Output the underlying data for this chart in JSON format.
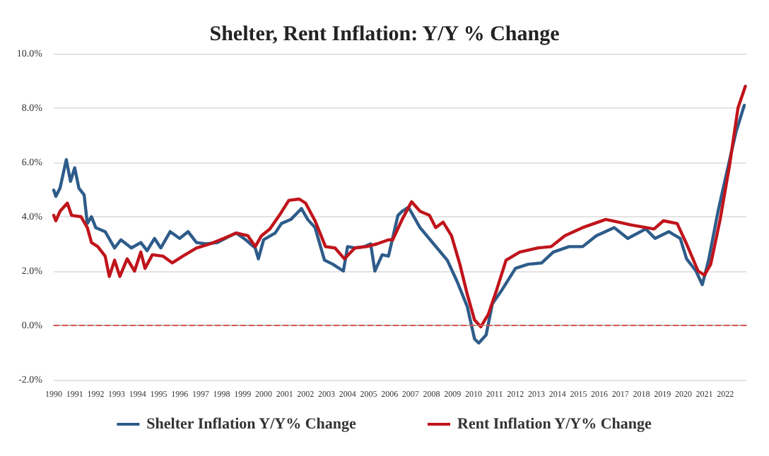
{
  "chart_data": {
    "type": "line",
    "title": "Shelter, Rent Inflation: Y/Y % Change",
    "xlim": [
      1990,
      2023
    ],
    "xticks": [
      1990,
      1991,
      1992,
      1993,
      1994,
      1995,
      1996,
      1997,
      1998,
      1999,
      2000,
      2001,
      2002,
      2003,
      2004,
      2005,
      2006,
      2007,
      2008,
      2009,
      2010,
      2011,
      2012,
      2013,
      2014,
      2015,
      2016,
      2017,
      2018,
      2019,
      2020,
      2021,
      2022
    ],
    "ylim": [
      -2,
      10
    ],
    "yticks": [
      {
        "value": -2,
        "label": "-2.0%"
      },
      {
        "value": 0,
        "label": "0.0%"
      },
      {
        "value": 2,
        "label": "2.0%"
      },
      {
        "value": 4,
        "label": "4.0%"
      },
      {
        "value": 6,
        "label": "6.0%"
      },
      {
        "value": 8,
        "label": "8.0%"
      },
      {
        "value": 10,
        "label": "10.0%"
      }
    ],
    "grid": "y",
    "legend": "bottom",
    "marker": "none",
    "line_style": "solid",
    "ref_lines": [
      {
        "axis": "y",
        "value": 0,
        "color": "#d9534f",
        "line_style": "dashed"
      }
    ],
    "series": [
      {
        "name": "Shelter Inflation Y/Y% Change",
        "color": "#2e5c8a",
        "x": [
          1990.0,
          1990.1,
          1990.3,
          1990.6,
          1990.8,
          1991.0,
          1991.2,
          1991.45,
          1991.6,
          1991.8,
          1992.0,
          1992.45,
          1992.9,
          1993.2,
          1993.7,
          1994.15,
          1994.45,
          1994.8,
          1995.1,
          1995.55,
          1996.0,
          1996.4,
          1996.8,
          1997.25,
          1997.8,
          1998.3,
          1998.7,
          1999.15,
          1999.6,
          1999.75,
          2000.0,
          2000.55,
          2000.85,
          2001.3,
          2001.8,
          2002.1,
          2002.45,
          2002.9,
          2003.3,
          2003.8,
          2004.0,
          2004.35,
          2004.8,
          2005.1,
          2005.3,
          2005.65,
          2005.95,
          2006.4,
          2006.6,
          2006.9,
          2007.45,
          2008.1,
          2008.75,
          2009.2,
          2009.7,
          2010.05,
          2010.25,
          2010.6,
          2010.9,
          2011.35,
          2012.0,
          2012.6,
          2013.25,
          2013.8,
          2014.55,
          2015.2,
          2015.85,
          2016.7,
          2017.35,
          2018.2,
          2018.65,
          2019.3,
          2019.85,
          2020.15,
          2020.6,
          2020.9,
          2021.2,
          2021.65,
          2022.1,
          2022.5,
          2022.9
        ],
        "values": [
          4.98,
          4.75,
          5.05,
          6.1,
          5.3,
          5.8,
          5.05,
          4.8,
          3.75,
          4.0,
          3.6,
          3.45,
          2.85,
          3.15,
          2.85,
          3.05,
          2.75,
          3.2,
          2.85,
          3.45,
          3.2,
          3.45,
          3.05,
          3.0,
          3.05,
          3.25,
          3.4,
          3.15,
          2.85,
          2.45,
          3.15,
          3.4,
          3.75,
          3.9,
          4.3,
          3.9,
          3.6,
          2.4,
          2.25,
          2.0,
          2.9,
          2.85,
          2.9,
          3.0,
          2.0,
          2.6,
          2.55,
          4.05,
          4.2,
          4.35,
          3.6,
          3.0,
          2.4,
          1.65,
          0.7,
          -0.5,
          -0.65,
          -0.35,
          0.8,
          1.3,
          2.1,
          2.25,
          2.3,
          2.7,
          2.9,
          2.9,
          3.3,
          3.6,
          3.2,
          3.55,
          3.2,
          3.45,
          3.2,
          2.45,
          2.0,
          1.5,
          2.4,
          4.2,
          5.75,
          7.1,
          8.1
        ]
      },
      {
        "name": "Rent Inflation Y/Y% Change",
        "color": "#c0141b",
        "x": [
          1990.0,
          1990.1,
          1990.3,
          1990.65,
          1990.85,
          1991.3,
          1991.6,
          1991.8,
          1992.1,
          1992.45,
          1992.65,
          1992.9,
          1993.15,
          1993.5,
          1993.85,
          1994.15,
          1994.35,
          1994.7,
          1995.2,
          1995.65,
          1996.15,
          1996.8,
          1997.45,
          1998.1,
          1998.7,
          1999.25,
          1999.6,
          1999.9,
          2000.3,
          2000.75,
          2001.2,
          2001.7,
          2002.0,
          2002.45,
          2002.95,
          2003.4,
          2003.85,
          2004.35,
          2004.9,
          2005.4,
          2005.95,
          2006.15,
          2006.6,
          2007.05,
          2007.45,
          2007.9,
          2008.2,
          2008.55,
          2008.95,
          2009.35,
          2009.7,
          2010.05,
          2010.35,
          2010.7,
          2011.1,
          2011.55,
          2012.2,
          2013.05,
          2013.7,
          2014.35,
          2015.2,
          2016.3,
          2016.9,
          2017.5,
          2018.6,
          2019.05,
          2019.7,
          2020.15,
          2020.7,
          2021.0,
          2021.3,
          2021.75,
          2022.2,
          2022.6,
          2022.95
        ],
        "values": [
          4.05,
          3.85,
          4.2,
          4.5,
          4.05,
          4.0,
          3.6,
          3.05,
          2.9,
          2.55,
          1.8,
          2.4,
          1.8,
          2.45,
          2.0,
          2.7,
          2.1,
          2.6,
          2.55,
          2.3,
          2.55,
          2.85,
          3.0,
          3.2,
          3.4,
          3.3,
          2.9,
          3.3,
          3.55,
          4.05,
          4.6,
          4.65,
          4.5,
          3.85,
          2.9,
          2.85,
          2.45,
          2.85,
          2.9,
          3.0,
          3.15,
          3.15,
          3.9,
          4.55,
          4.2,
          4.05,
          3.6,
          3.8,
          3.3,
          2.25,
          1.15,
          0.2,
          -0.05,
          0.4,
          1.3,
          2.4,
          2.7,
          2.85,
          2.9,
          3.3,
          3.6,
          3.9,
          3.8,
          3.7,
          3.55,
          3.85,
          3.75,
          3.0,
          2.0,
          1.85,
          2.25,
          3.9,
          5.9,
          8.0,
          8.8
        ]
      }
    ]
  }
}
